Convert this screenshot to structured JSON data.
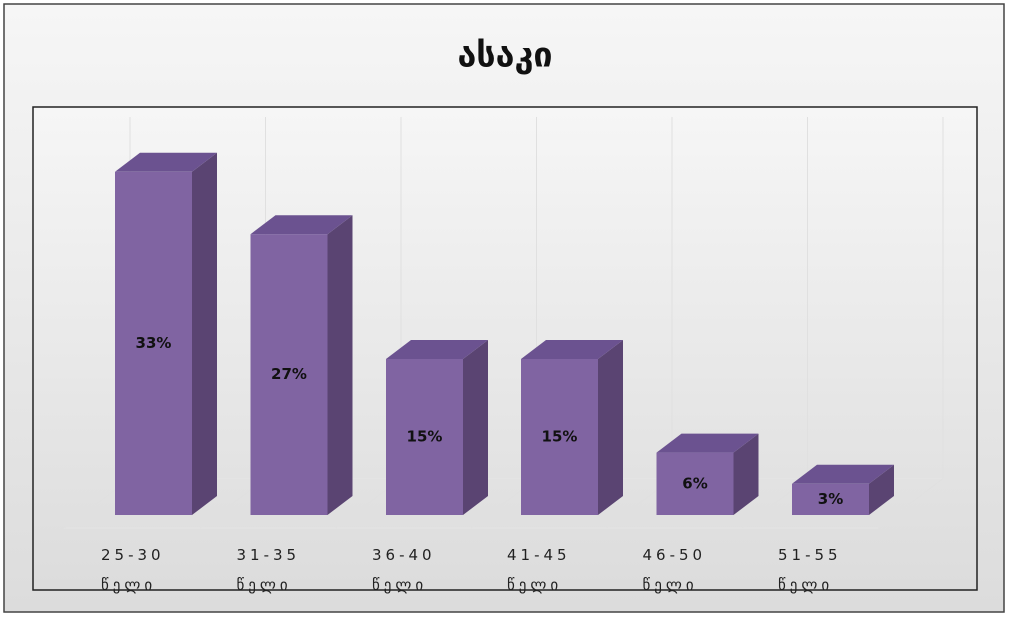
{
  "chart_data": {
    "type": "bar3d",
    "title": "ასაკი",
    "categories": [
      "25-30 წელი",
      "31-35 წელი",
      "36-40 წელი",
      "41-45 წელი",
      "46-50 წელი",
      "51-55 წელი"
    ],
    "values": [
      33,
      27,
      15,
      15,
      6,
      3
    ],
    "value_labels": [
      "33%",
      "27%",
      "15%",
      "15%",
      "6%",
      "3%"
    ],
    "color": "#8064a2",
    "ylim": [
      0,
      35
    ]
  }
}
